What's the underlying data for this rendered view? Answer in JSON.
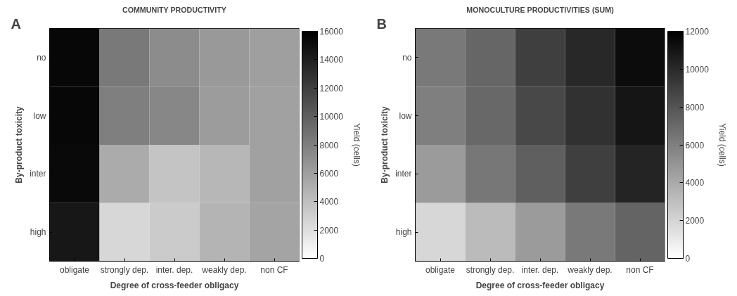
{
  "chart_data": [
    {
      "type": "heatmap",
      "title": "COMMUNITY PRODUCTIVITY",
      "xlabel": "Degree of cross-feeder obligacy",
      "ylabel": "By-product toxicity",
      "clabel": "Yield (cells)",
      "annotations": [
        "A"
      ],
      "categories": [
        "obligate",
        "strongly dep.",
        "inter. dep.",
        "weakly dep.",
        "non CF"
      ],
      "y_categories": [
        "no",
        "low",
        "inter",
        "high"
      ],
      "cells": [
        [
          15500,
          8400,
          7200,
          6400,
          6000
        ],
        [
          15500,
          8000,
          7500,
          6200,
          5900
        ],
        [
          15400,
          5300,
          3700,
          4500,
          5900
        ],
        [
          14500,
          2500,
          3300,
          4700,
          5700
        ]
      ],
      "clim": [
        0,
        16000
      ],
      "cticks": [
        0,
        2000,
        4000,
        6000,
        8000,
        10000,
        12000,
        14000,
        16000
      ],
      "grid": false
    },
    {
      "type": "heatmap",
      "title": "MONOCULTURE PRODUCTIVITIES (SUM)",
      "xlabel": "Degree of cross-feeder obligacy",
      "ylabel": "By-product toxicity",
      "clabel": "Yield (cells)",
      "annotations": [
        "B"
      ],
      "categories": [
        "obligate",
        "strongly dep.",
        "inter. dep.",
        "weakly dep.",
        "non CF"
      ],
      "y_categories": [
        "no",
        "low",
        "inter",
        "high"
      ],
      "cells": [
        [
          6300,
          7200,
          9000,
          10100,
          11400
        ],
        [
          6000,
          7100,
          8600,
          9700,
          11000
        ],
        [
          4700,
          6400,
          7500,
          9000,
          10300
        ],
        [
          1900,
          3200,
          4700,
          6300,
          7300
        ]
      ],
      "clim": [
        0,
        12000
      ],
      "cticks": [
        0,
        2000,
        4000,
        6000,
        8000,
        10000,
        12000
      ],
      "grid": false
    }
  ]
}
